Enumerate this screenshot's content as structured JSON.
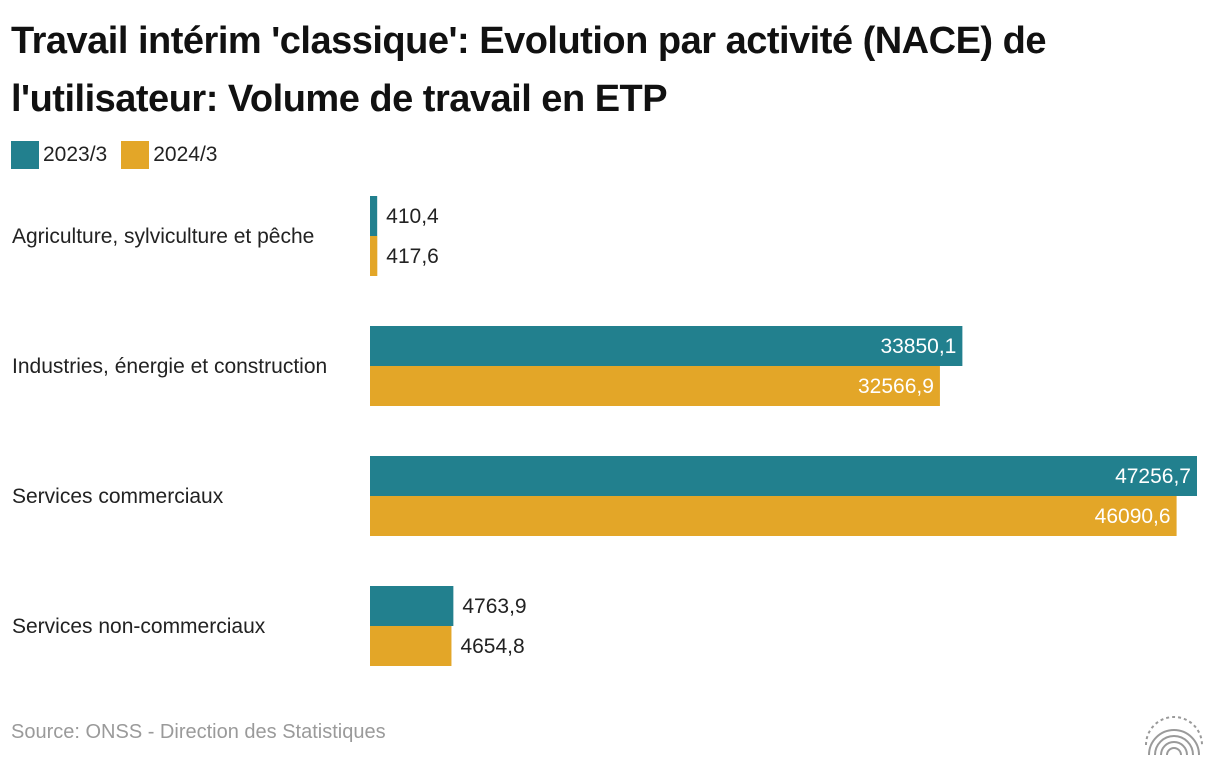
{
  "header": {
    "title": "Travail intérim 'classique': Evolution par activité (NACE) de l'utilisateur: Volume de travail en ETP"
  },
  "footer": {
    "source": "Source: ONSS - Direction des Statistiques",
    "logo_icon": "onss-arcs-logo-icon"
  },
  "colors": {
    "series_2023": "#22808e",
    "series_2024": "#e3a628",
    "label_inside": "#ffffff",
    "label_outside": "#222222"
  },
  "chart_data": {
    "type": "bar",
    "orientation": "horizontal",
    "title": "Travail intérim 'classique': Evolution par activité (NACE) de l'utilisateur: Volume de travail en ETP",
    "categories": [
      "Agriculture, sylviculture et pêche",
      "Industries, énergie et construction",
      "Services commerciaux",
      "Services non-commerciaux"
    ],
    "series": [
      {
        "name": "2023/3",
        "color": "#22808e",
        "values": [
          410.4,
          33850.1,
          47256.7,
          4763.9
        ],
        "labels": [
          "410,4",
          "33850,1",
          "47256,7",
          "4763,9"
        ]
      },
      {
        "name": "2024/3",
        "color": "#e3a628",
        "values": [
          417.6,
          32566.9,
          46090.6,
          4654.8
        ],
        "labels": [
          "417,6",
          "32566,9",
          "46090,6",
          "4654,8"
        ]
      }
    ],
    "legend": "top-left",
    "xlim": [
      0,
      47256.7
    ],
    "grid": false,
    "xlabel": "",
    "ylabel": ""
  }
}
